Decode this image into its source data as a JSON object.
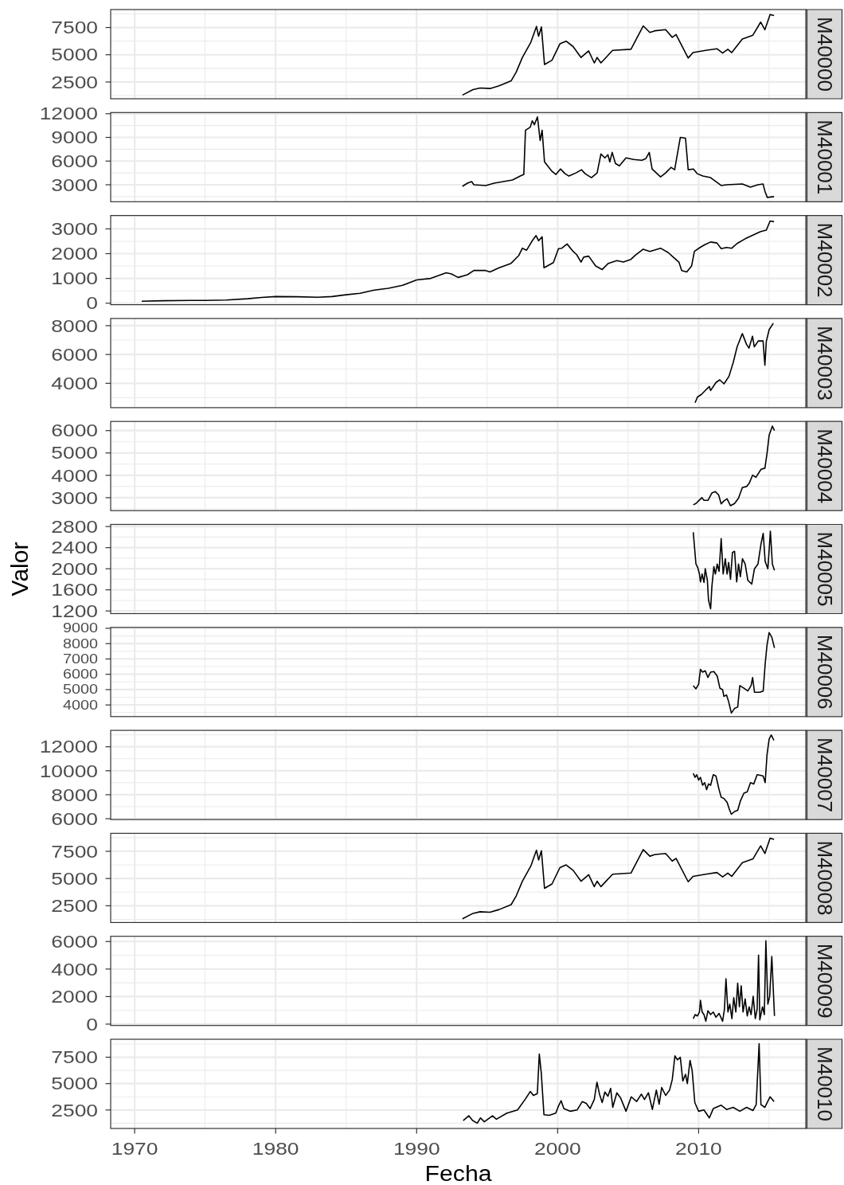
{
  "chart_data": [
    {
      "type": "line",
      "title": "M40000",
      "x": [
        1993.25,
        1994,
        1994.5,
        1995.2,
        1995.85,
        1996.7,
        1997.06,
        1997.5,
        1998.1,
        1998.5,
        1998.65,
        1998.85,
        1999.07,
        1999.6,
        2000.16,
        2000.6,
        2001.1,
        2001.66,
        2002.2,
        2002.6,
        2002.8,
        2003.07,
        2003.9,
        2005.2,
        2006.07,
        2006.54,
        2006.9,
        2007.66,
        2008.13,
        2008.4,
        2009.26,
        2009.6,
        2010.5,
        2011.3,
        2011.7,
        2012.07,
        2012.35,
        2013.1,
        2013.85,
        2014.4,
        2014.7,
        2015.07,
        2015.35
      ],
      "series": [
        {
          "color": "#000000",
          "values": [
            1300,
            1800,
            1950,
            1900,
            2150,
            2600,
            3400,
            4750,
            6150,
            7600,
            6700,
            7550,
            4100,
            4500,
            6000,
            6250,
            5750,
            4750,
            5350,
            4250,
            4750,
            4250,
            5400,
            5500,
            7650,
            7050,
            7200,
            7300,
            6600,
            6850,
            4700,
            5200,
            5400,
            5550,
            5150,
            5500,
            5200,
            6450,
            6800,
            8000,
            7300,
            8700,
            8600
          ]
        }
      ],
      "xlim": [
        1968.3,
        2017.6
      ],
      "xticks": [
        1970,
        1980,
        1990,
        2000,
        2010
      ],
      "ylim": [
        960,
        9150
      ],
      "yticks": [
        2500,
        5000,
        7500
      ],
      "grid": true,
      "tick_labels": "y"
    },
    {
      "type": "line",
      "title": "M40001",
      "x": [
        1993.25,
        1993.6,
        1993.9,
        1994.06,
        1994.9,
        1995.5,
        1996.8,
        1997.35,
        1997.6,
        1997.72,
        1998.06,
        1998.2,
        1998.35,
        1998.57,
        1998.76,
        1998.9,
        1999.07,
        1999.6,
        1999.88,
        2000.2,
        2000.53,
        2000.8,
        2001.3,
        2001.7,
        2001.95,
        2002.4,
        2002.8,
        2003.07,
        2003.35,
        2003.57,
        2003.7,
        2003.87,
        2004.1,
        2004.38,
        2004.85,
        2005.4,
        2005.97,
        2006.25,
        2006.5,
        2006.7,
        2007.3,
        2007.66,
        2008.04,
        2008.3,
        2008.7,
        2009.07,
        2009.26,
        2009.63,
        2009.9,
        2010.3,
        2010.85,
        2011.6,
        2011.98,
        2013.1,
        2013.67,
        2014.2,
        2014.57,
        2014.7,
        2014.87,
        2015.35
      ],
      "series": [
        {
          "color": "#000000",
          "values": [
            2800,
            3200,
            3400,
            3000,
            2900,
            3200,
            3600,
            4100,
            4300,
            9900,
            10300,
            11100,
            10600,
            11600,
            8600,
            9900,
            5900,
            4700,
            4300,
            5000,
            4400,
            4100,
            4500,
            4900,
            4400,
            3900,
            4500,
            6900,
            6400,
            6800,
            5900,
            7100,
            5700,
            5400,
            6400,
            6200,
            6100,
            6300,
            7100,
            5000,
            4000,
            4500,
            5200,
            4900,
            9000,
            8900,
            4900,
            5000,
            4400,
            4100,
            3900,
            2900,
            3000,
            3100,
            2700,
            3000,
            3100,
            2200,
            1400,
            1500
          ]
        }
      ],
      "xlim": [
        1968.3,
        2017.6
      ],
      "xticks": [
        1970,
        1980,
        1990,
        2000,
        2010
      ],
      "ylim": [
        850,
        12150
      ],
      "yticks": [
        3000,
        6000,
        9000,
        12000
      ],
      "grid": true,
      "tick_labels": "y"
    },
    {
      "type": "line",
      "title": "M40002",
      "x": [
        1970.5,
        1972,
        1974,
        1975,
        1976.5,
        1978,
        1979,
        1980,
        1981.5,
        1983,
        1984,
        1985,
        1986,
        1987,
        1988,
        1989,
        1990,
        1991,
        1992.1,
        1992.47,
        1992.94,
        1993.6,
        1994.06,
        1994.9,
        1995.2,
        1995.85,
        1996.7,
        1997.25,
        1997.5,
        1997.8,
        1998.2,
        1998.47,
        1998.65,
        1998.9,
        1999.03,
        1999.7,
        2000.06,
        2000.3,
        2000.67,
        2001.1,
        2001.35,
        2001.66,
        2001.85,
        2002.2,
        2002.7,
        2003.16,
        2003.6,
        2004.2,
        2004.66,
        2005.2,
        2005.5,
        2006.07,
        2006.54,
        2007.3,
        2007.85,
        2008.2,
        2008.6,
        2008.8,
        2009.16,
        2009.5,
        2009.7,
        2010.1,
        2010.44,
        2010.85,
        2011.3,
        2011.6,
        2011.98,
        2012.35,
        2012.73,
        2013.3,
        2013.85,
        2014.4,
        2014.8,
        2015.07,
        2015.35
      ],
      "series": [
        {
          "color": "#000000",
          "values": [
            80,
            100,
            110,
            110,
            130,
            180,
            230,
            270,
            260,
            240,
            270,
            340,
            400,
            530,
            600,
            720,
            940,
            1000,
            1230,
            1180,
            1040,
            1150,
            1320,
            1320,
            1260,
            1430,
            1610,
            1930,
            2220,
            2140,
            2520,
            2730,
            2520,
            2680,
            1430,
            1640,
            2200,
            2220,
            2390,
            2090,
            1960,
            1660,
            1860,
            1900,
            1500,
            1360,
            1610,
            1720,
            1660,
            1770,
            1930,
            2180,
            2090,
            2220,
            2040,
            1860,
            1660,
            1320,
            1260,
            1500,
            2090,
            2250,
            2360,
            2470,
            2430,
            2200,
            2250,
            2220,
            2410,
            2600,
            2750,
            2890,
            2950,
            3320,
            3290
          ]
        }
      ],
      "xlim": [
        1968.3,
        2017.6
      ],
      "xticks": [
        1970,
        1980,
        1990,
        2000,
        2010
      ],
      "ylim": [
        -60,
        3540
      ],
      "yticks": [
        0,
        1000,
        2000,
        3000
      ],
      "grid": true,
      "tick_labels": "y"
    },
    {
      "type": "line",
      "title": "M40003",
      "x": [
        2009.75,
        2009.92,
        2010.2,
        2010.57,
        2010.76,
        2010.85,
        2011.23,
        2011.5,
        2011.8,
        2012.15,
        2012.45,
        2012.73,
        2013.1,
        2013.39,
        2013.57,
        2013.82,
        2013.95,
        2014.23,
        2014.57,
        2014.7,
        2014.8,
        2015.0,
        2015.3
      ],
      "series": [
        {
          "color": "#000000",
          "values": [
            2650,
            3050,
            3230,
            3600,
            3780,
            3500,
            4060,
            4240,
            3960,
            4480,
            5430,
            6530,
            7450,
            6720,
            6440,
            7270,
            6530,
            6940,
            6940,
            5250,
            6900,
            7720,
            8170
          ]
        }
      ],
      "xlim": [
        1968.3,
        2017.6
      ],
      "xticks": [
        1970,
        1980,
        1990,
        2000,
        2010
      ],
      "ylim": [
        2310,
        8500
      ],
      "yticks": [
        4000,
        6000,
        8000
      ],
      "grid": true,
      "tick_labels": "y"
    },
    {
      "type": "line",
      "title": "M40004",
      "x": [
        2009.62,
        2009.81,
        2010.1,
        2010.23,
        2010.38,
        2010.66,
        2010.94,
        2011.19,
        2011.42,
        2011.6,
        2011.8,
        2012.02,
        2012.26,
        2012.55,
        2012.83,
        2013.1,
        2013.4,
        2013.6,
        2013.83,
        2014.06,
        2014.43,
        2014.7,
        2014.85,
        2015.0,
        2015.23,
        2015.38
      ],
      "series": [
        {
          "color": "#000000",
          "values": [
            2680,
            2740,
            2920,
            3000,
            2880,
            2880,
            3210,
            3270,
            3120,
            2720,
            2860,
            2950,
            2640,
            2740,
            2980,
            3450,
            3500,
            3660,
            4010,
            3910,
            4270,
            4320,
            4970,
            5790,
            6200,
            6000
          ]
        }
      ],
      "xlim": [
        1968.3,
        2017.6
      ],
      "xticks": [
        1970,
        1980,
        1990,
        2000,
        2010
      ],
      "ylim": [
        2420,
        6410
      ],
      "yticks": [
        3000,
        4000,
        5000,
        6000
      ],
      "grid": true,
      "tick_labels": "y"
    },
    {
      "type": "line",
      "title": "M40005",
      "ylabel": "Valor",
      "x": [
        2009.62,
        2009.81,
        2009.94,
        2010.06,
        2010.13,
        2010.25,
        2010.38,
        2010.47,
        2010.62,
        2010.7,
        2010.85,
        2010.94,
        2011.08,
        2011.19,
        2011.32,
        2011.45,
        2011.6,
        2011.74,
        2011.89,
        2012.02,
        2012.13,
        2012.26,
        2012.4,
        2012.55,
        2012.7,
        2012.83,
        2012.96,
        2013.11,
        2013.3,
        2013.49,
        2013.77,
        2013.96,
        2014.21,
        2014.43,
        2014.58,
        2014.72,
        2014.91,
        2015.09,
        2015.23,
        2015.38
      ],
      "series": [
        {
          "color": "#000000",
          "values": [
            2690,
            2090,
            2020,
            1900,
            1750,
            1900,
            1740,
            2000,
            1780,
            1410,
            1240,
            1660,
            2040,
            1900,
            2090,
            1950,
            2570,
            1900,
            2190,
            1900,
            2120,
            1800,
            2310,
            2330,
            1750,
            2090,
            1850,
            2190,
            2090,
            1780,
            1710,
            2000,
            2090,
            2480,
            2670,
            2140,
            2000,
            2710,
            2090,
            1970
          ]
        }
      ],
      "xlim": [
        1968.3,
        2017.6
      ],
      "xticks": [
        1970,
        1980,
        1990,
        2000,
        2010
      ],
      "ylim": [
        1150,
        2840
      ],
      "yticks": [
        1200,
        1600,
        2000,
        2400,
        2800
      ],
      "grid": true,
      "tick_labels": "y"
    },
    {
      "type": "line",
      "title": "M40006",
      "x": [
        2009.62,
        2009.81,
        2010.0,
        2010.13,
        2010.28,
        2010.47,
        2010.66,
        2010.85,
        2011.08,
        2011.32,
        2011.51,
        2011.7,
        2011.79,
        2011.98,
        2012.13,
        2012.32,
        2012.55,
        2012.77,
        2012.92,
        2013.21,
        2013.49,
        2013.72,
        2013.83,
        2013.96,
        2014.34,
        2014.58,
        2014.72,
        2014.85,
        2015.0,
        2015.19,
        2015.38
      ],
      "series": [
        {
          "color": "#000000",
          "values": [
            5260,
            5050,
            5350,
            6320,
            6140,
            6230,
            5790,
            6140,
            6180,
            5880,
            5090,
            5000,
            4560,
            4650,
            4210,
            3470,
            3770,
            3860,
            5260,
            5090,
            4910,
            5260,
            5790,
            4830,
            4830,
            4910,
            6670,
            7900,
            8720,
            8420,
            7720
          ]
        }
      ],
      "xlim": [
        1968.3,
        2017.6
      ],
      "xticks": [
        1970,
        1980,
        1990,
        2000,
        2010
      ],
      "ylim": [
        3240,
        9060
      ],
      "yticks": [
        4000,
        5000,
        6000,
        7000,
        8000,
        9000
      ],
      "grid": true,
      "tick_labels": "y"
    },
    {
      "type": "line",
      "title": "M40007",
      "x": [
        2009.62,
        2009.75,
        2009.87,
        2010.0,
        2010.13,
        2010.28,
        2010.43,
        2010.57,
        2010.7,
        2010.85,
        2011.04,
        2011.23,
        2011.45,
        2011.6,
        2011.79,
        2012.02,
        2012.17,
        2012.32,
        2012.55,
        2012.77,
        2012.96,
        2013.21,
        2013.45,
        2013.68,
        2013.91,
        2014.15,
        2014.43,
        2014.58,
        2014.72,
        2014.85,
        2015.0,
        2015.15,
        2015.34
      ],
      "series": [
        {
          "color": "#000000",
          "values": [
            9780,
            9450,
            9670,
            9230,
            9450,
            8790,
            9010,
            8420,
            8900,
            8790,
            9670,
            9560,
            8420,
            7800,
            7690,
            7360,
            6810,
            6370,
            6600,
            6700,
            7470,
            8130,
            8240,
            9010,
            8900,
            9670,
            9610,
            9560,
            9010,
            11320,
            12640,
            12980,
            12530
          ]
        }
      ],
      "xlim": [
        1968.3,
        2017.6
      ],
      "xticks": [
        1970,
        1980,
        1990,
        2000,
        2010
      ],
      "ylim": [
        5930,
        13370
      ],
      "yticks": [
        6000,
        8000,
        10000,
        12000
      ],
      "grid": true,
      "tick_labels": "y"
    },
    {
      "type": "line",
      "title": "M40008",
      "x": [
        1993.25,
        1994,
        1994.5,
        1995.2,
        1995.85,
        1996.7,
        1997.06,
        1997.5,
        1998.1,
        1998.5,
        1998.65,
        1998.85,
        1999.07,
        1999.6,
        2000.16,
        2000.6,
        2001.1,
        2001.66,
        2002.2,
        2002.6,
        2002.8,
        2003.07,
        2003.9,
        2005.2,
        2006.07,
        2006.54,
        2006.9,
        2007.66,
        2008.13,
        2008.4,
        2009.26,
        2009.6,
        2010.5,
        2011.3,
        2011.7,
        2012.07,
        2012.35,
        2013.1,
        2013.85,
        2014.4,
        2014.7,
        2015.07,
        2015.35
      ],
      "series": [
        {
          "color": "#000000",
          "values": [
            1300,
            1800,
            1950,
            1900,
            2150,
            2600,
            3400,
            4750,
            6150,
            7600,
            6700,
            7550,
            4100,
            4500,
            6000,
            6250,
            5750,
            4750,
            5350,
            4250,
            4750,
            4250,
            5400,
            5500,
            7650,
            7050,
            7200,
            7300,
            6600,
            6850,
            4700,
            5200,
            5400,
            5550,
            5150,
            5500,
            5200,
            6450,
            6800,
            8000,
            7300,
            8700,
            8600
          ]
        }
      ],
      "xlim": [
        1968.3,
        2017.6
      ],
      "xticks": [
        1970,
        1980,
        1990,
        2000,
        2010
      ],
      "ylim": [
        960,
        9150
      ],
      "yticks": [
        2500,
        5000,
        7500
      ],
      "grid": true,
      "tick_labels": "y"
    },
    {
      "type": "line",
      "title": "M40009",
      "x": [
        2009.62,
        2009.75,
        2009.91,
        2010.06,
        2010.13,
        2010.25,
        2010.38,
        2010.51,
        2010.66,
        2010.85,
        2011.04,
        2011.23,
        2011.45,
        2011.7,
        2011.83,
        2011.94,
        2012.08,
        2012.21,
        2012.36,
        2012.49,
        2012.64,
        2012.77,
        2012.89,
        2013.02,
        2013.15,
        2013.3,
        2013.45,
        2013.58,
        2013.72,
        2013.87,
        2014.02,
        2014.15,
        2014.25,
        2014.34,
        2014.53,
        2014.66,
        2014.77,
        2014.91,
        2015.04,
        2015.19,
        2015.38
      ],
      "series": [
        {
          "color": "#000000",
          "values": [
            400,
            690,
            590,
            880,
            1730,
            880,
            690,
            210,
            970,
            690,
            880,
            500,
            780,
            210,
            1070,
            3300,
            880,
            1450,
            400,
            1920,
            880,
            2970,
            1260,
            2780,
            880,
            1830,
            590,
            1260,
            690,
            2020,
            400,
            1070,
            5020,
            310,
            1260,
            690,
            6050,
            1450,
            2020,
            4920,
            590
          ]
        }
      ],
      "xlim": [
        1968.3,
        2017.6
      ],
      "xticks": [
        1970,
        1980,
        1990,
        2000,
        2010
      ],
      "ylim": [
        -100,
        6380
      ],
      "yticks": [
        0,
        2000,
        4000,
        6000
      ],
      "grid": true,
      "tick_labels": "y"
    },
    {
      "type": "line",
      "title": "M40010",
      "xlabel": "Fecha",
      "x": [
        1993.3,
        1993.7,
        1993.97,
        1994.3,
        1994.53,
        1994.8,
        1995.38,
        1995.66,
        1996.4,
        1997.16,
        1997.72,
        1998.06,
        1998.28,
        1998.56,
        1998.7,
        1998.84,
        1999.03,
        1999.4,
        1999.87,
        2000.06,
        2000.25,
        2000.44,
        2000.9,
        2001.38,
        2001.75,
        2002.03,
        2002.3,
        2002.6,
        2002.79,
        2002.97,
        2003.16,
        2003.35,
        2003.57,
        2003.76,
        2003.91,
        2004.2,
        2004.47,
        2004.85,
        2005.22,
        2005.6,
        2005.94,
        2006.16,
        2006.44,
        2006.72,
        2007.0,
        2007.2,
        2007.38,
        2007.66,
        2007.94,
        2008.13,
        2008.32,
        2008.5,
        2008.7,
        2008.88,
        2009.07,
        2009.2,
        2009.39,
        2009.54,
        2009.73,
        2010.0,
        2010.38,
        2010.76,
        2011.04,
        2011.6,
        2011.98,
        2012.45,
        2012.92,
        2013.4,
        2013.86,
        2014.08,
        2014.29,
        2014.42,
        2014.7,
        2014.88,
        2015.07,
        2015.35
      ],
      "series": [
        {
          "color": "#000000",
          "values": [
            1500,
            1950,
            1500,
            1250,
            1750,
            1380,
            1950,
            1630,
            2200,
            2500,
            3550,
            4250,
            3880,
            4050,
            7800,
            6000,
            2050,
            2000,
            2200,
            2880,
            3380,
            2630,
            2380,
            2500,
            3300,
            3130,
            2630,
            3500,
            5130,
            4000,
            3200,
            4200,
            3800,
            4550,
            2750,
            4130,
            3630,
            2380,
            3750,
            3300,
            4000,
            3500,
            4130,
            2550,
            4380,
            3050,
            4630,
            3880,
            4380,
            5380,
            7630,
            7250,
            7500,
            5250,
            5880,
            5000,
            7200,
            6250,
            3200,
            2380,
            2500,
            1750,
            2630,
            2950,
            2550,
            2750,
            2380,
            2750,
            2450,
            3000,
            8780,
            3000,
            2750,
            3250,
            3750,
            3300
          ]
        }
      ],
      "xlim": [
        1968.3,
        2017.6
      ],
      "xticks": [
        1970,
        1980,
        1990,
        2000,
        2010
      ],
      "ylim": [
        750,
        9200
      ],
      "yticks": [
        2500,
        5000,
        7500
      ],
      "grid": true
    }
  ]
}
